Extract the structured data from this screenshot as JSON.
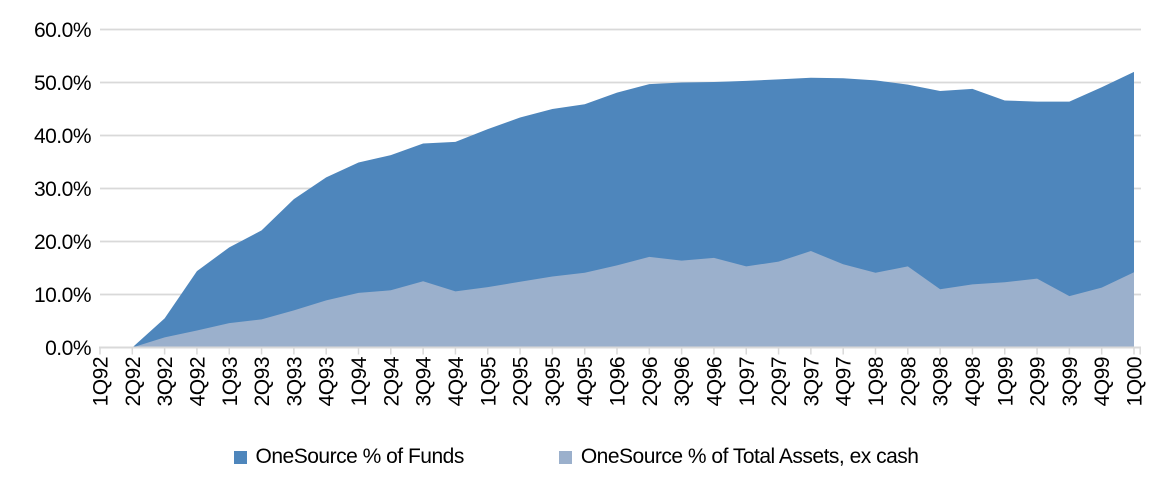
{
  "chart_data": {
    "type": "area",
    "title": "",
    "categories": [
      "1Q92",
      "2Q92",
      "3Q92",
      "4Q92",
      "1Q93",
      "2Q93",
      "3Q93",
      "4Q93",
      "1Q94",
      "2Q94",
      "3Q94",
      "4Q94",
      "1Q95",
      "2Q95",
      "3Q95",
      "4Q95",
      "1Q96",
      "2Q96",
      "3Q96",
      "4Q96",
      "1Q97",
      "2Q97",
      "3Q97",
      "4Q97",
      "1Q98",
      "2Q98",
      "3Q98",
      "4Q98",
      "1Q99",
      "2Q99",
      "3Q99",
      "4Q99",
      "1Q00"
    ],
    "series": [
      {
        "name": "OneSource % of Funds",
        "color": "#4E86BC",
        "values": [
          0.0,
          0.0,
          5.5,
          14.4,
          18.9,
          22.1,
          28.0,
          32.1,
          34.9,
          36.3,
          38.5,
          38.8,
          41.2,
          43.4,
          45.0,
          45.9,
          48.1,
          49.7,
          50.0,
          50.1,
          50.3,
          50.6,
          50.9,
          50.8,
          50.4,
          49.6,
          48.4,
          48.8,
          46.6,
          46.4,
          46.4,
          49.1,
          52.0
        ]
      },
      {
        "name": "OneSource % of Total Assets, ex cash",
        "color": "#9BB0CC",
        "values": [
          0.0,
          0.0,
          1.9,
          3.2,
          4.6,
          5.3,
          7.0,
          8.9,
          10.3,
          10.8,
          12.5,
          10.6,
          11.4,
          12.4,
          13.4,
          14.1,
          15.5,
          17.1,
          16.4,
          16.9,
          15.3,
          16.2,
          18.2,
          15.7,
          14.1,
          15.3,
          11.0,
          11.9,
          12.3,
          13.0,
          9.7,
          11.3,
          14.2
        ]
      }
    ],
    "overlap": true,
    "xlabel": "",
    "ylabel": "",
    "y_axis": {
      "min": 0,
      "max": 60,
      "step": 10,
      "tick_labels": [
        "0.0%",
        "10.0%",
        "20.0%",
        "30.0%",
        "40.0%",
        "50.0%",
        "60.0%"
      ]
    },
    "grid": true,
    "legend_position": "bottom",
    "colors": {
      "gridline": "#D9D9D9",
      "axis": "#D9D9D9",
      "text": "#000000",
      "background": "#FFFFFF"
    }
  }
}
